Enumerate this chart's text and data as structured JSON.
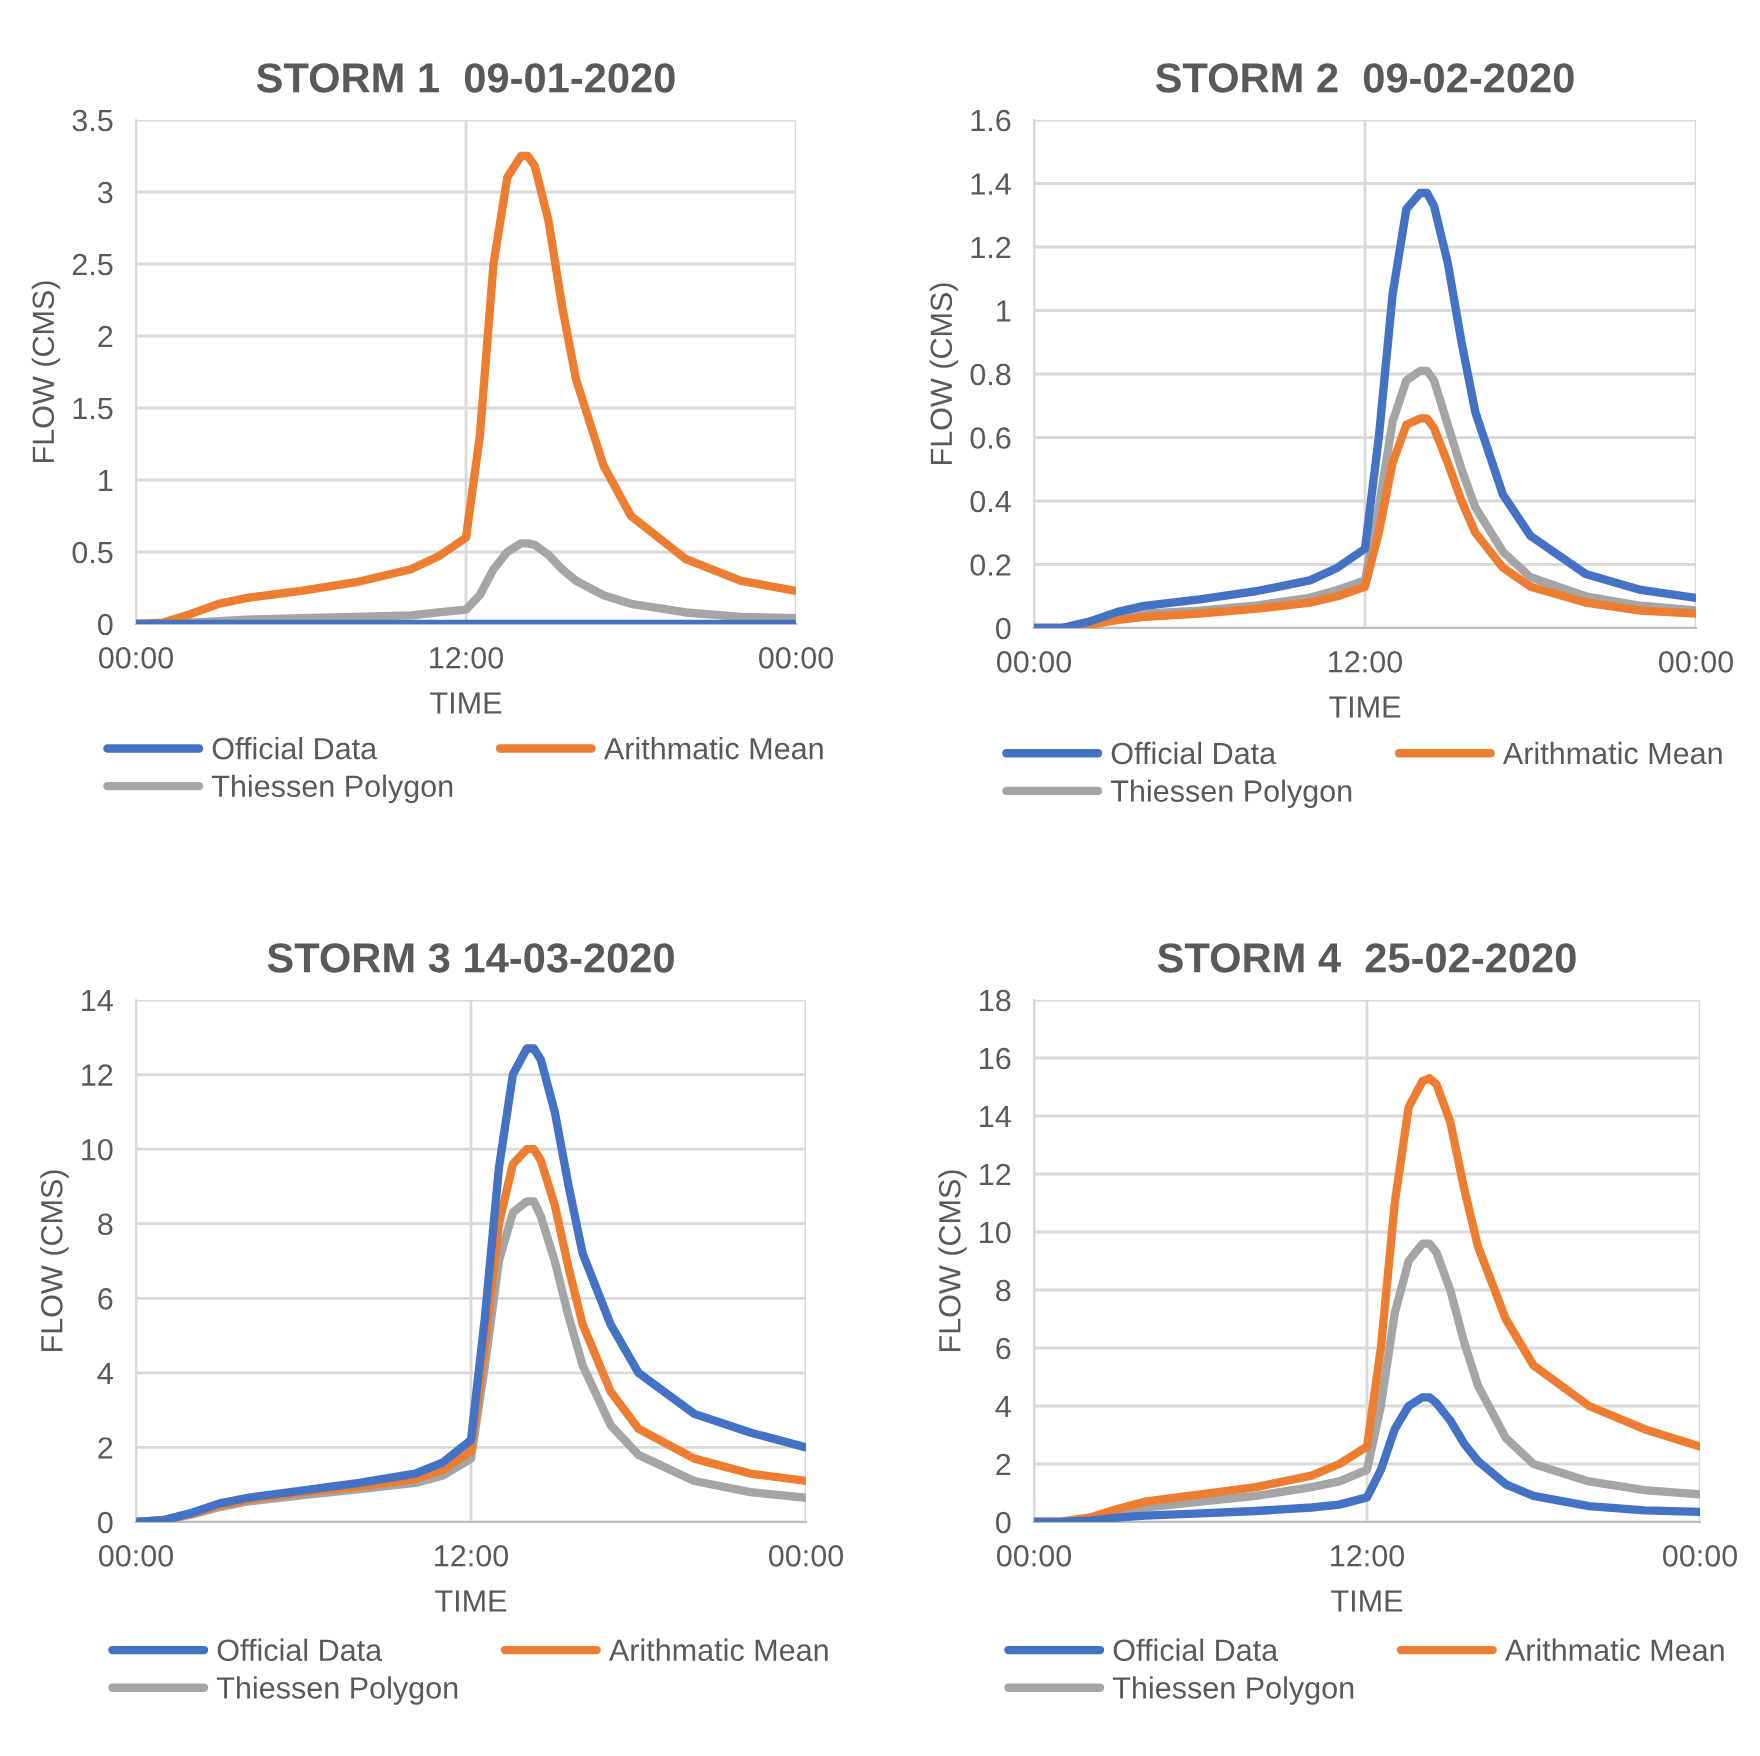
{
  "chart_data": [
    {
      "type": "line",
      "title": "STORM 1  09-01-2020",
      "xlabel": "TIME",
      "ylabel": "FLOW (CMS)",
      "x": [
        0,
        1,
        2,
        3,
        4,
        6,
        8,
        10,
        11,
        12,
        12.5,
        13,
        13.5,
        14,
        14.25,
        14.5,
        15,
        15.5,
        16,
        17,
        18,
        20,
        22,
        24
      ],
      "xlim": [
        0,
        24
      ],
      "xticks": [
        {
          "value": 0,
          "label": "00:00"
        },
        {
          "value": 12,
          "label": "12:00"
        },
        {
          "value": 24,
          "label": "00:00"
        }
      ],
      "ylim": [
        0,
        3.5
      ],
      "yticks": [
        0,
        0.5,
        1,
        1.5,
        2,
        2.5,
        3,
        3.5
      ],
      "grid": true,
      "legend": "bottom",
      "line_style": "solid",
      "marker": "none",
      "series": [
        {
          "name": "Official Data",
          "color": "#4472c4",
          "values": [
            0,
            0,
            0,
            0,
            0,
            0,
            0,
            0,
            0,
            0,
            0,
            0,
            0,
            0,
            0,
            0,
            0,
            0,
            0,
            0,
            0,
            0,
            0,
            0
          ]
        },
        {
          "name": "Arithmatic Mean",
          "color": "#ed7d31",
          "values": [
            0,
            0.01,
            0.07,
            0.14,
            0.18,
            0.23,
            0.29,
            0.38,
            0.47,
            0.6,
            1.3,
            2.5,
            3.1,
            3.25,
            3.25,
            3.18,
            2.8,
            2.2,
            1.7,
            1.1,
            0.75,
            0.45,
            0.3,
            0.23
          ]
        },
        {
          "name": "Thiessen Polygon",
          "color": "#a5a5a5",
          "values": [
            0,
            0,
            0.01,
            0.02,
            0.03,
            0.04,
            0.05,
            0.06,
            0.08,
            0.1,
            0.2,
            0.38,
            0.5,
            0.56,
            0.56,
            0.55,
            0.48,
            0.38,
            0.3,
            0.2,
            0.14,
            0.08,
            0.05,
            0.04
          ]
        }
      ]
    },
    {
      "type": "line",
      "title": "STORM 2  09-02-2020",
      "xlabel": "TIME",
      "ylabel": "FLOW (CMS)",
      "x": [
        0,
        1,
        2,
        3,
        4,
        6,
        8,
        10,
        11,
        12,
        12.5,
        13,
        13.5,
        14,
        14.25,
        14.5,
        15,
        15.5,
        16,
        17,
        18,
        20,
        22,
        24
      ],
      "xlim": [
        0,
        24
      ],
      "xticks": [
        {
          "value": 0,
          "label": "00:00"
        },
        {
          "value": 12,
          "label": "12:00"
        },
        {
          "value": 24,
          "label": "00:00"
        }
      ],
      "ylim": [
        0,
        1.6
      ],
      "yticks": [
        0,
        0.2,
        0.4,
        0.6,
        0.8,
        1,
        1.2,
        1.4,
        1.6
      ],
      "grid": true,
      "legend": "bottom",
      "line_style": "solid",
      "marker": "none",
      "series": [
        {
          "name": "Official Data",
          "color": "#4472c4",
          "values": [
            0,
            0,
            0.02,
            0.05,
            0.07,
            0.09,
            0.115,
            0.15,
            0.19,
            0.25,
            0.6,
            1.05,
            1.32,
            1.37,
            1.37,
            1.33,
            1.15,
            0.9,
            0.68,
            0.42,
            0.29,
            0.17,
            0.12,
            0.095
          ]
        },
        {
          "name": "Arithmatic Mean",
          "color": "#ed7d31",
          "values": [
            0,
            0,
            0.01,
            0.025,
            0.035,
            0.045,
            0.06,
            0.08,
            0.1,
            0.13,
            0.3,
            0.52,
            0.64,
            0.66,
            0.66,
            0.63,
            0.52,
            0.4,
            0.3,
            0.19,
            0.13,
            0.08,
            0.055,
            0.045
          ]
        },
        {
          "name": "Thiessen Polygon",
          "color": "#a5a5a5",
          "values": [
            0,
            0,
            0.015,
            0.03,
            0.045,
            0.055,
            0.07,
            0.095,
            0.12,
            0.15,
            0.38,
            0.65,
            0.78,
            0.81,
            0.81,
            0.78,
            0.64,
            0.5,
            0.38,
            0.24,
            0.16,
            0.1,
            0.07,
            0.055
          ]
        }
      ]
    },
    {
      "type": "line",
      "title": "STORM 3 14-03-2020",
      "xlabel": "TIME",
      "ylabel": "FLOW (CMS)",
      "x": [
        0,
        1,
        2,
        3,
        4,
        6,
        8,
        10,
        11,
        12,
        12.5,
        13,
        13.5,
        14,
        14.25,
        14.5,
        15,
        15.5,
        16,
        17,
        18,
        20,
        22,
        24
      ],
      "xlim": [
        0,
        24
      ],
      "xticks": [
        {
          "value": 0,
          "label": "00:00"
        },
        {
          "value": 12,
          "label": "12:00"
        },
        {
          "value": 24,
          "label": "00:00"
        }
      ],
      "ylim": [
        0,
        14
      ],
      "yticks": [
        0,
        2,
        4,
        6,
        8,
        10,
        12,
        14
      ],
      "grid": true,
      "legend": "bottom",
      "line_style": "solid",
      "marker": "none",
      "series": [
        {
          "name": "Official Data",
          "color": "#4472c4",
          "values": [
            0,
            0.05,
            0.25,
            0.5,
            0.65,
            0.85,
            1.05,
            1.3,
            1.6,
            2.2,
            5.5,
            9.5,
            12,
            12.7,
            12.7,
            12.4,
            11,
            9,
            7.2,
            5.3,
            4.0,
            2.9,
            2.4,
            2.0
          ]
        },
        {
          "name": "Arithmatic Mean",
          "color": "#ed7d31",
          "values": [
            0,
            0.05,
            0.22,
            0.45,
            0.6,
            0.8,
            0.95,
            1.15,
            1.4,
            1.9,
            4.8,
            8,
            9.6,
            10,
            10,
            9.7,
            8.5,
            6.8,
            5.3,
            3.5,
            2.5,
            1.7,
            1.3,
            1.1
          ]
        },
        {
          "name": "Thiessen Polygon",
          "color": "#a5a5a5",
          "values": [
            0,
            0.04,
            0.2,
            0.4,
            0.55,
            0.72,
            0.88,
            1.05,
            1.25,
            1.7,
            4.2,
            7,
            8.3,
            8.6,
            8.6,
            8.2,
            7,
            5.5,
            4.2,
            2.6,
            1.8,
            1.1,
            0.8,
            0.65
          ]
        }
      ]
    },
    {
      "type": "line",
      "title": "STORM 4  25-02-2020",
      "xlabel": "TIME",
      "ylabel": "FLOW (CMS)",
      "x": [
        0,
        1,
        2,
        3,
        4,
        6,
        8,
        10,
        11,
        12,
        12.5,
        13,
        13.5,
        14,
        14.25,
        14.5,
        15,
        15.5,
        16,
        17,
        18,
        20,
        22,
        24
      ],
      "xlim": [
        0,
        24
      ],
      "xticks": [
        {
          "value": 0,
          "label": "00:00"
        },
        {
          "value": 12,
          "label": "12:00"
        },
        {
          "value": 24,
          "label": "00:00"
        }
      ],
      "ylim": [
        0,
        18
      ],
      "yticks": [
        0,
        2,
        4,
        6,
        8,
        10,
        12,
        14,
        16,
        18
      ],
      "grid": true,
      "legend": "bottom",
      "line_style": "solid",
      "marker": "none",
      "series": [
        {
          "name": "Official Data",
          "color": "#4472c4",
          "values": [
            0,
            0,
            0.05,
            0.15,
            0.22,
            0.3,
            0.38,
            0.5,
            0.6,
            0.85,
            1.8,
            3.2,
            4.0,
            4.3,
            4.3,
            4.1,
            3.5,
            2.7,
            2.1,
            1.3,
            0.9,
            0.55,
            0.4,
            0.35
          ]
        },
        {
          "name": "Arithmatic Mean",
          "color": "#ed7d31",
          "values": [
            0,
            0.02,
            0.15,
            0.45,
            0.7,
            0.95,
            1.2,
            1.6,
            2.0,
            2.6,
            6,
            11,
            14.3,
            15.2,
            15.3,
            15.1,
            13.8,
            11.5,
            9.5,
            7,
            5.4,
            4,
            3.2,
            2.6
          ]
        },
        {
          "name": "Thiessen Polygon",
          "color": "#a5a5a5",
          "values": [
            0,
            0.01,
            0.1,
            0.3,
            0.5,
            0.7,
            0.9,
            1.2,
            1.4,
            1.8,
            4,
            7.2,
            9,
            9.6,
            9.6,
            9.3,
            8,
            6.2,
            4.7,
            2.9,
            2,
            1.4,
            1.1,
            0.95
          ]
        }
      ]
    }
  ]
}
